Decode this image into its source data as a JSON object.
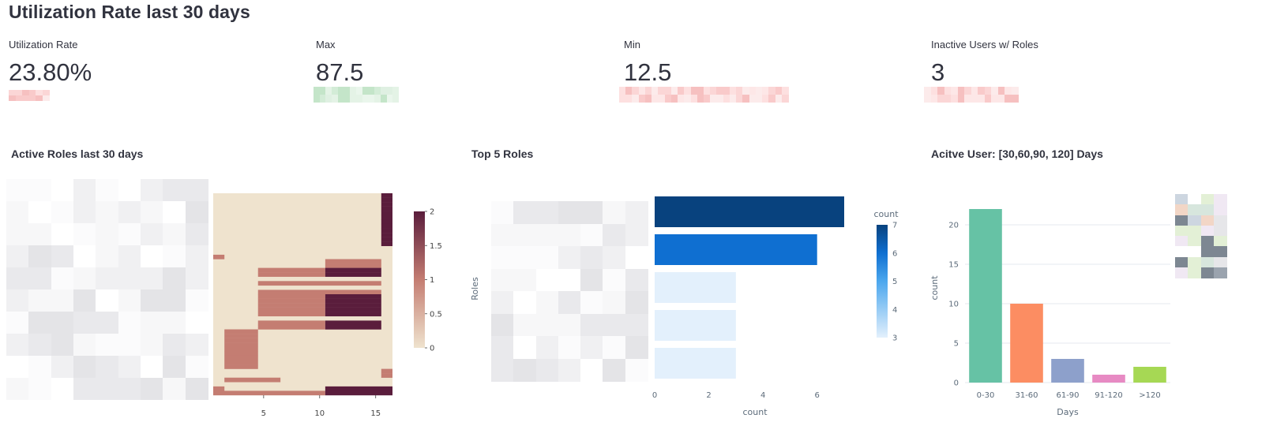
{
  "page_title": "Utilization Rate last 30 days",
  "metrics": [
    {
      "label": "Utilization Rate",
      "value": "23.80%",
      "delta_color": "#f5b5b5"
    },
    {
      "label": "Max",
      "value": "87.5",
      "delta_color": "#bde3c4"
    },
    {
      "label": "Min",
      "value": "12.5",
      "delta_color": "#f8c7c7"
    },
    {
      "label": "Inactive Users w/ Roles",
      "value": "3",
      "delta_color": "#f8c7c7"
    }
  ],
  "sections": {
    "active_roles": "Active Roles last 30 days",
    "top_roles": "Top 5 Roles",
    "active_user": "Acitve User: [30,60,90, 120] Days"
  },
  "chart_data": [
    {
      "type": "heatmap",
      "title": "Active Roles last 30 days",
      "x_ticks": [
        "5",
        "10",
        "15"
      ],
      "colorbar_ticks": [
        "2",
        "1.5",
        "1",
        "0.5",
        "0"
      ],
      "colorbar_range": [
        0,
        2
      ],
      "colors": {
        "low": "#efe3ce",
        "mid": "#c47d72",
        "high": "#5a1d3c"
      }
    },
    {
      "type": "bar",
      "orientation": "horizontal",
      "title": "Top 5 Roles",
      "values": [
        7,
        6,
        3,
        3,
        3
      ],
      "xlabel": "count",
      "ylabel": "Roles",
      "xlim": [
        0,
        7.7
      ],
      "x_ticks": [
        "0",
        "2",
        "4",
        "6"
      ],
      "colorbar_label": "count",
      "colorbar_ticks": [
        "7",
        "6",
        "5",
        "4",
        "3"
      ],
      "colorbar_range": [
        3,
        7
      ],
      "colors": {
        "low": "#e3f0fc",
        "high": "#08427e",
        "mid": "#0f6fd1"
      }
    },
    {
      "type": "bar",
      "title": "Acitve User: [30,60,90, 120] Days",
      "categories": [
        "0-30",
        "31-60",
        "61-90",
        "91-120",
        ">120"
      ],
      "values": [
        22,
        10,
        3,
        1,
        2
      ],
      "xlabel": "Days",
      "ylabel": "count",
      "ylim": [
        0,
        23
      ],
      "y_ticks": [
        "0",
        "5",
        "10",
        "15",
        "20"
      ],
      "colors": [
        "#66c2a5",
        "#fc8d62",
        "#8da0cb",
        "#e78ac3",
        "#a6d854"
      ]
    }
  ]
}
